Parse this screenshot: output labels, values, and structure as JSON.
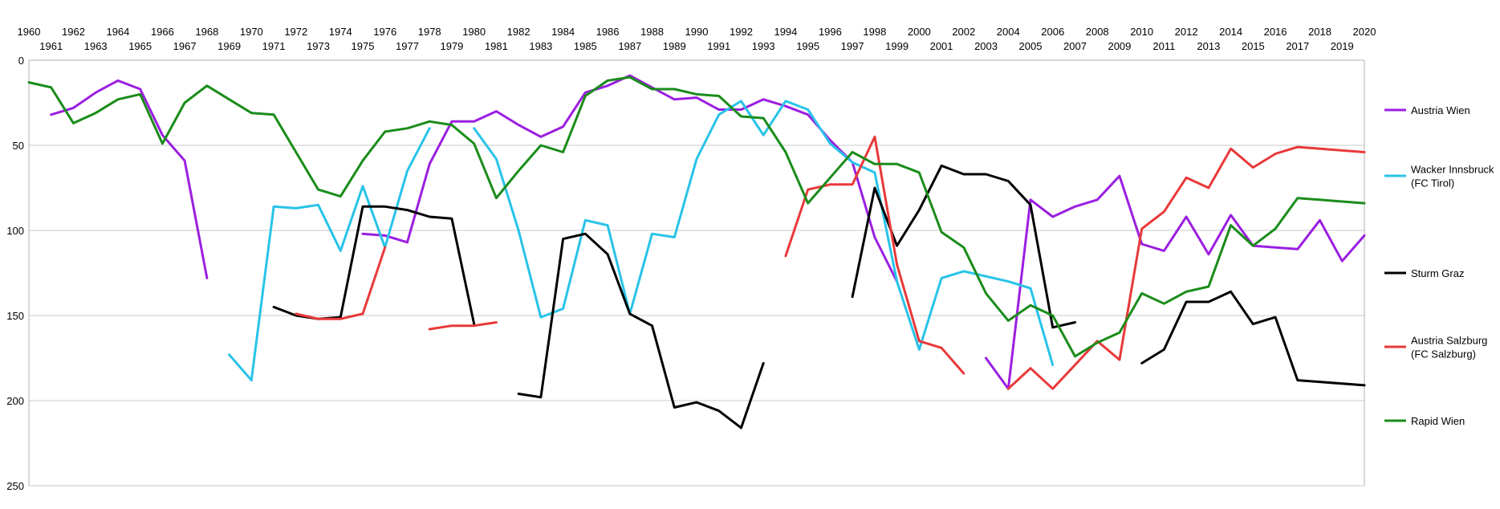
{
  "chart_data": {
    "type": "line",
    "title": "",
    "xlabel": "",
    "ylabel": "",
    "xlim": [
      1960,
      2020
    ],
    "ylim": [
      0,
      250
    ],
    "y_inverted": true,
    "y_ticks": [
      0,
      50,
      100,
      150,
      200,
      250
    ],
    "x_ticks": [
      1960,
      1961,
      1962,
      1963,
      1964,
      1965,
      1966,
      1967,
      1968,
      1969,
      1970,
      1971,
      1972,
      1973,
      1974,
      1975,
      1976,
      1977,
      1978,
      1979,
      1980,
      1981,
      1982,
      1983,
      1984,
      1985,
      1986,
      1987,
      1988,
      1989,
      1990,
      1991,
      1992,
      1993,
      1994,
      1995,
      1996,
      1997,
      1998,
      1999,
      2000,
      2001,
      2002,
      2003,
      2004,
      2005,
      2006,
      2007,
      2008,
      2009,
      2010,
      2011,
      2012,
      2013,
      2014,
      2015,
      2016,
      2017,
      2018,
      2019,
      2020
    ],
    "x_tick_labels_position": "top",
    "grid": "horizontal",
    "legend_position": "right",
    "series": [
      {
        "name": "Austria Wien",
        "color": "#9b1fe0",
        "points": [
          [
            1961,
            32
          ],
          [
            1962,
            28
          ],
          [
            1963,
            19
          ],
          [
            1964,
            12
          ],
          [
            1965,
            17
          ],
          [
            1966,
            44
          ],
          [
            1967,
            59
          ],
          [
            1968,
            128
          ],
          null,
          [
            1975,
            102
          ],
          [
            1976,
            103
          ],
          [
            1977,
            107
          ],
          [
            1978,
            61
          ],
          [
            1979,
            36
          ],
          [
            1980,
            36
          ],
          [
            1981,
            30
          ],
          [
            1982,
            38
          ],
          [
            1983,
            45
          ],
          [
            1984,
            39
          ],
          [
            1985,
            19
          ],
          [
            1986,
            15
          ],
          [
            1987,
            9
          ],
          [
            1988,
            16
          ],
          [
            1989,
            23
          ],
          [
            1990,
            22
          ],
          [
            1991,
            29
          ],
          [
            1992,
            29
          ],
          [
            1993,
            23
          ],
          [
            1994,
            27
          ],
          [
            1995,
            32
          ],
          [
            1996,
            47
          ],
          [
            1997,
            60
          ],
          [
            1998,
            104
          ],
          [
            1999,
            130
          ],
          null,
          [
            2003,
            175
          ],
          [
            2004,
            193
          ],
          [
            2005,
            82
          ],
          [
            2006,
            92
          ],
          [
            2007,
            86
          ],
          [
            2008,
            82
          ],
          [
            2009,
            68
          ],
          [
            2010,
            108
          ],
          [
            2011,
            112
          ],
          [
            2012,
            92
          ],
          [
            2013,
            114
          ],
          [
            2014,
            91
          ],
          [
            2015,
            109
          ],
          [
            2016,
            110
          ],
          [
            2017,
            111
          ],
          [
            2018,
            94
          ],
          [
            2019,
            118
          ],
          [
            2020,
            103
          ]
        ]
      },
      {
        "name": "Wacker Innsbruck (FC Tirol)",
        "color": "#28c3e8",
        "points": [
          [
            1969,
            173
          ],
          [
            1970,
            188
          ],
          [
            1971,
            86
          ],
          [
            1972,
            87
          ],
          [
            1973,
            85
          ],
          [
            1974,
            112
          ],
          [
            1975,
            74
          ],
          [
            1976,
            110
          ],
          [
            1977,
            65
          ],
          [
            1978,
            40
          ],
          null,
          [
            1980,
            40
          ],
          [
            1981,
            58
          ],
          [
            1982,
            100
          ],
          [
            1983,
            151
          ],
          [
            1984,
            146
          ],
          [
            1985,
            94
          ],
          [
            1986,
            97
          ],
          [
            1987,
            149
          ],
          [
            1988,
            102
          ],
          [
            1989,
            104
          ],
          [
            1990,
            58
          ],
          [
            1991,
            32
          ],
          [
            1992,
            24
          ],
          [
            1993,
            44
          ],
          [
            1994,
            24
          ],
          [
            1995,
            29
          ],
          [
            1996,
            49
          ],
          [
            1997,
            60
          ],
          [
            1998,
            66
          ],
          [
            1999,
            130
          ],
          [
            2000,
            170
          ],
          [
            2001,
            128
          ],
          [
            2002,
            124
          ],
          [
            2003,
            127
          ],
          [
            2004,
            130
          ],
          [
            2005,
            134
          ],
          [
            2006,
            179
          ]
        ]
      },
      {
        "name": "Sturm Graz",
        "color": "#000000",
        "points": [
          [
            1971,
            145
          ],
          [
            1972,
            150
          ],
          [
            1973,
            152
          ],
          [
            1974,
            151
          ],
          [
            1975,
            86
          ],
          [
            1976,
            86
          ],
          [
            1977,
            88
          ],
          [
            1978,
            92
          ],
          [
            1979,
            93
          ],
          [
            1980,
            155
          ],
          null,
          [
            1982,
            196
          ],
          [
            1983,
            198
          ],
          [
            1984,
            105
          ],
          [
            1985,
            102
          ],
          [
            1986,
            114
          ],
          [
            1987,
            149
          ],
          [
            1988,
            156
          ],
          [
            1989,
            204
          ],
          [
            1990,
            201
          ],
          [
            1991,
            206
          ],
          [
            1992,
            216
          ],
          [
            1993,
            178
          ],
          null,
          [
            1997,
            139
          ],
          [
            1998,
            75
          ],
          [
            1999,
            109
          ],
          [
            2000,
            88
          ],
          [
            2001,
            62
          ],
          [
            2002,
            67
          ],
          [
            2003,
            67
          ],
          [
            2004,
            71
          ],
          [
            2005,
            85
          ],
          [
            2006,
            157
          ],
          [
            2007,
            154
          ],
          null,
          [
            2010,
            178
          ],
          [
            2011,
            170
          ],
          [
            2012,
            142
          ],
          [
            2013,
            142
          ],
          [
            2014,
            136
          ],
          [
            2015,
            155
          ],
          [
            2016,
            151
          ],
          [
            2017,
            188
          ],
          [
            2020,
            191
          ]
        ]
      },
      {
        "name": "Austria Salzburg (FC Salzburg)",
        "color": "#e8393a",
        "points": [
          [
            1972,
            149
          ],
          [
            1973,
            152
          ],
          [
            1974,
            152
          ],
          [
            1975,
            149
          ],
          [
            1976,
            110
          ],
          null,
          [
            1978,
            158
          ],
          [
            1979,
            156
          ],
          [
            1980,
            156
          ],
          [
            1981,
            154
          ],
          null,
          [
            1994,
            115
          ],
          [
            1995,
            76
          ],
          [
            1996,
            73
          ],
          [
            1997,
            73
          ],
          [
            1998,
            45
          ],
          [
            1999,
            120
          ],
          [
            2000,
            165
          ],
          [
            2001,
            169
          ],
          [
            2002,
            184
          ],
          null,
          [
            2004,
            193
          ],
          [
            2005,
            181
          ],
          [
            2006,
            193
          ],
          [
            2007,
            179
          ],
          [
            2008,
            165
          ],
          [
            2009,
            176
          ],
          [
            2010,
            99
          ],
          [
            2011,
            89
          ],
          [
            2012,
            69
          ],
          [
            2013,
            75
          ],
          [
            2014,
            52
          ],
          [
            2015,
            63
          ],
          [
            2016,
            55
          ],
          [
            2017,
            51
          ],
          [
            2020,
            54
          ]
        ]
      },
      {
        "name": "Rapid Wien",
        "color": "#1a8c1a",
        "points": [
          [
            1960,
            13
          ],
          [
            1961,
            16
          ],
          [
            1962,
            37
          ],
          [
            1963,
            31
          ],
          [
            1964,
            23
          ],
          [
            1965,
            20
          ],
          [
            1966,
            49
          ],
          [
            1967,
            25
          ],
          [
            1968,
            15
          ],
          [
            1969,
            23
          ],
          [
            1970,
            31
          ],
          [
            1971,
            32
          ],
          [
            1972,
            54
          ],
          [
            1973,
            76
          ],
          [
            1974,
            80
          ],
          [
            1975,
            59
          ],
          [
            1976,
            42
          ],
          [
            1977,
            40
          ],
          [
            1978,
            36
          ],
          [
            1979,
            38
          ],
          [
            1980,
            49
          ],
          [
            1981,
            81
          ],
          [
            1982,
            65
          ],
          [
            1983,
            50
          ],
          [
            1984,
            54
          ],
          [
            1985,
            21
          ],
          [
            1986,
            12
          ],
          [
            1987,
            10
          ],
          [
            1988,
            17
          ],
          [
            1989,
            17
          ],
          [
            1990,
            20
          ],
          [
            1991,
            21
          ],
          [
            1992,
            33
          ],
          [
            1993,
            34
          ],
          [
            1994,
            54
          ],
          [
            1995,
            84
          ],
          [
            1996,
            69
          ],
          [
            1997,
            54
          ],
          [
            1998,
            61
          ],
          [
            1999,
            61
          ],
          [
            2000,
            66
          ],
          [
            2001,
            101
          ],
          [
            2002,
            110
          ],
          [
            2003,
            137
          ],
          [
            2004,
            153
          ],
          [
            2005,
            144
          ],
          [
            2006,
            150
          ],
          [
            2007,
            174
          ],
          [
            2008,
            166
          ],
          [
            2009,
            160
          ],
          [
            2010,
            137
          ],
          [
            2011,
            143
          ],
          [
            2012,
            136
          ],
          [
            2013,
            133
          ],
          [
            2014,
            97
          ],
          [
            2015,
            109
          ],
          [
            2016,
            99
          ],
          [
            2017,
            81
          ],
          [
            2020,
            84
          ]
        ]
      }
    ]
  }
}
